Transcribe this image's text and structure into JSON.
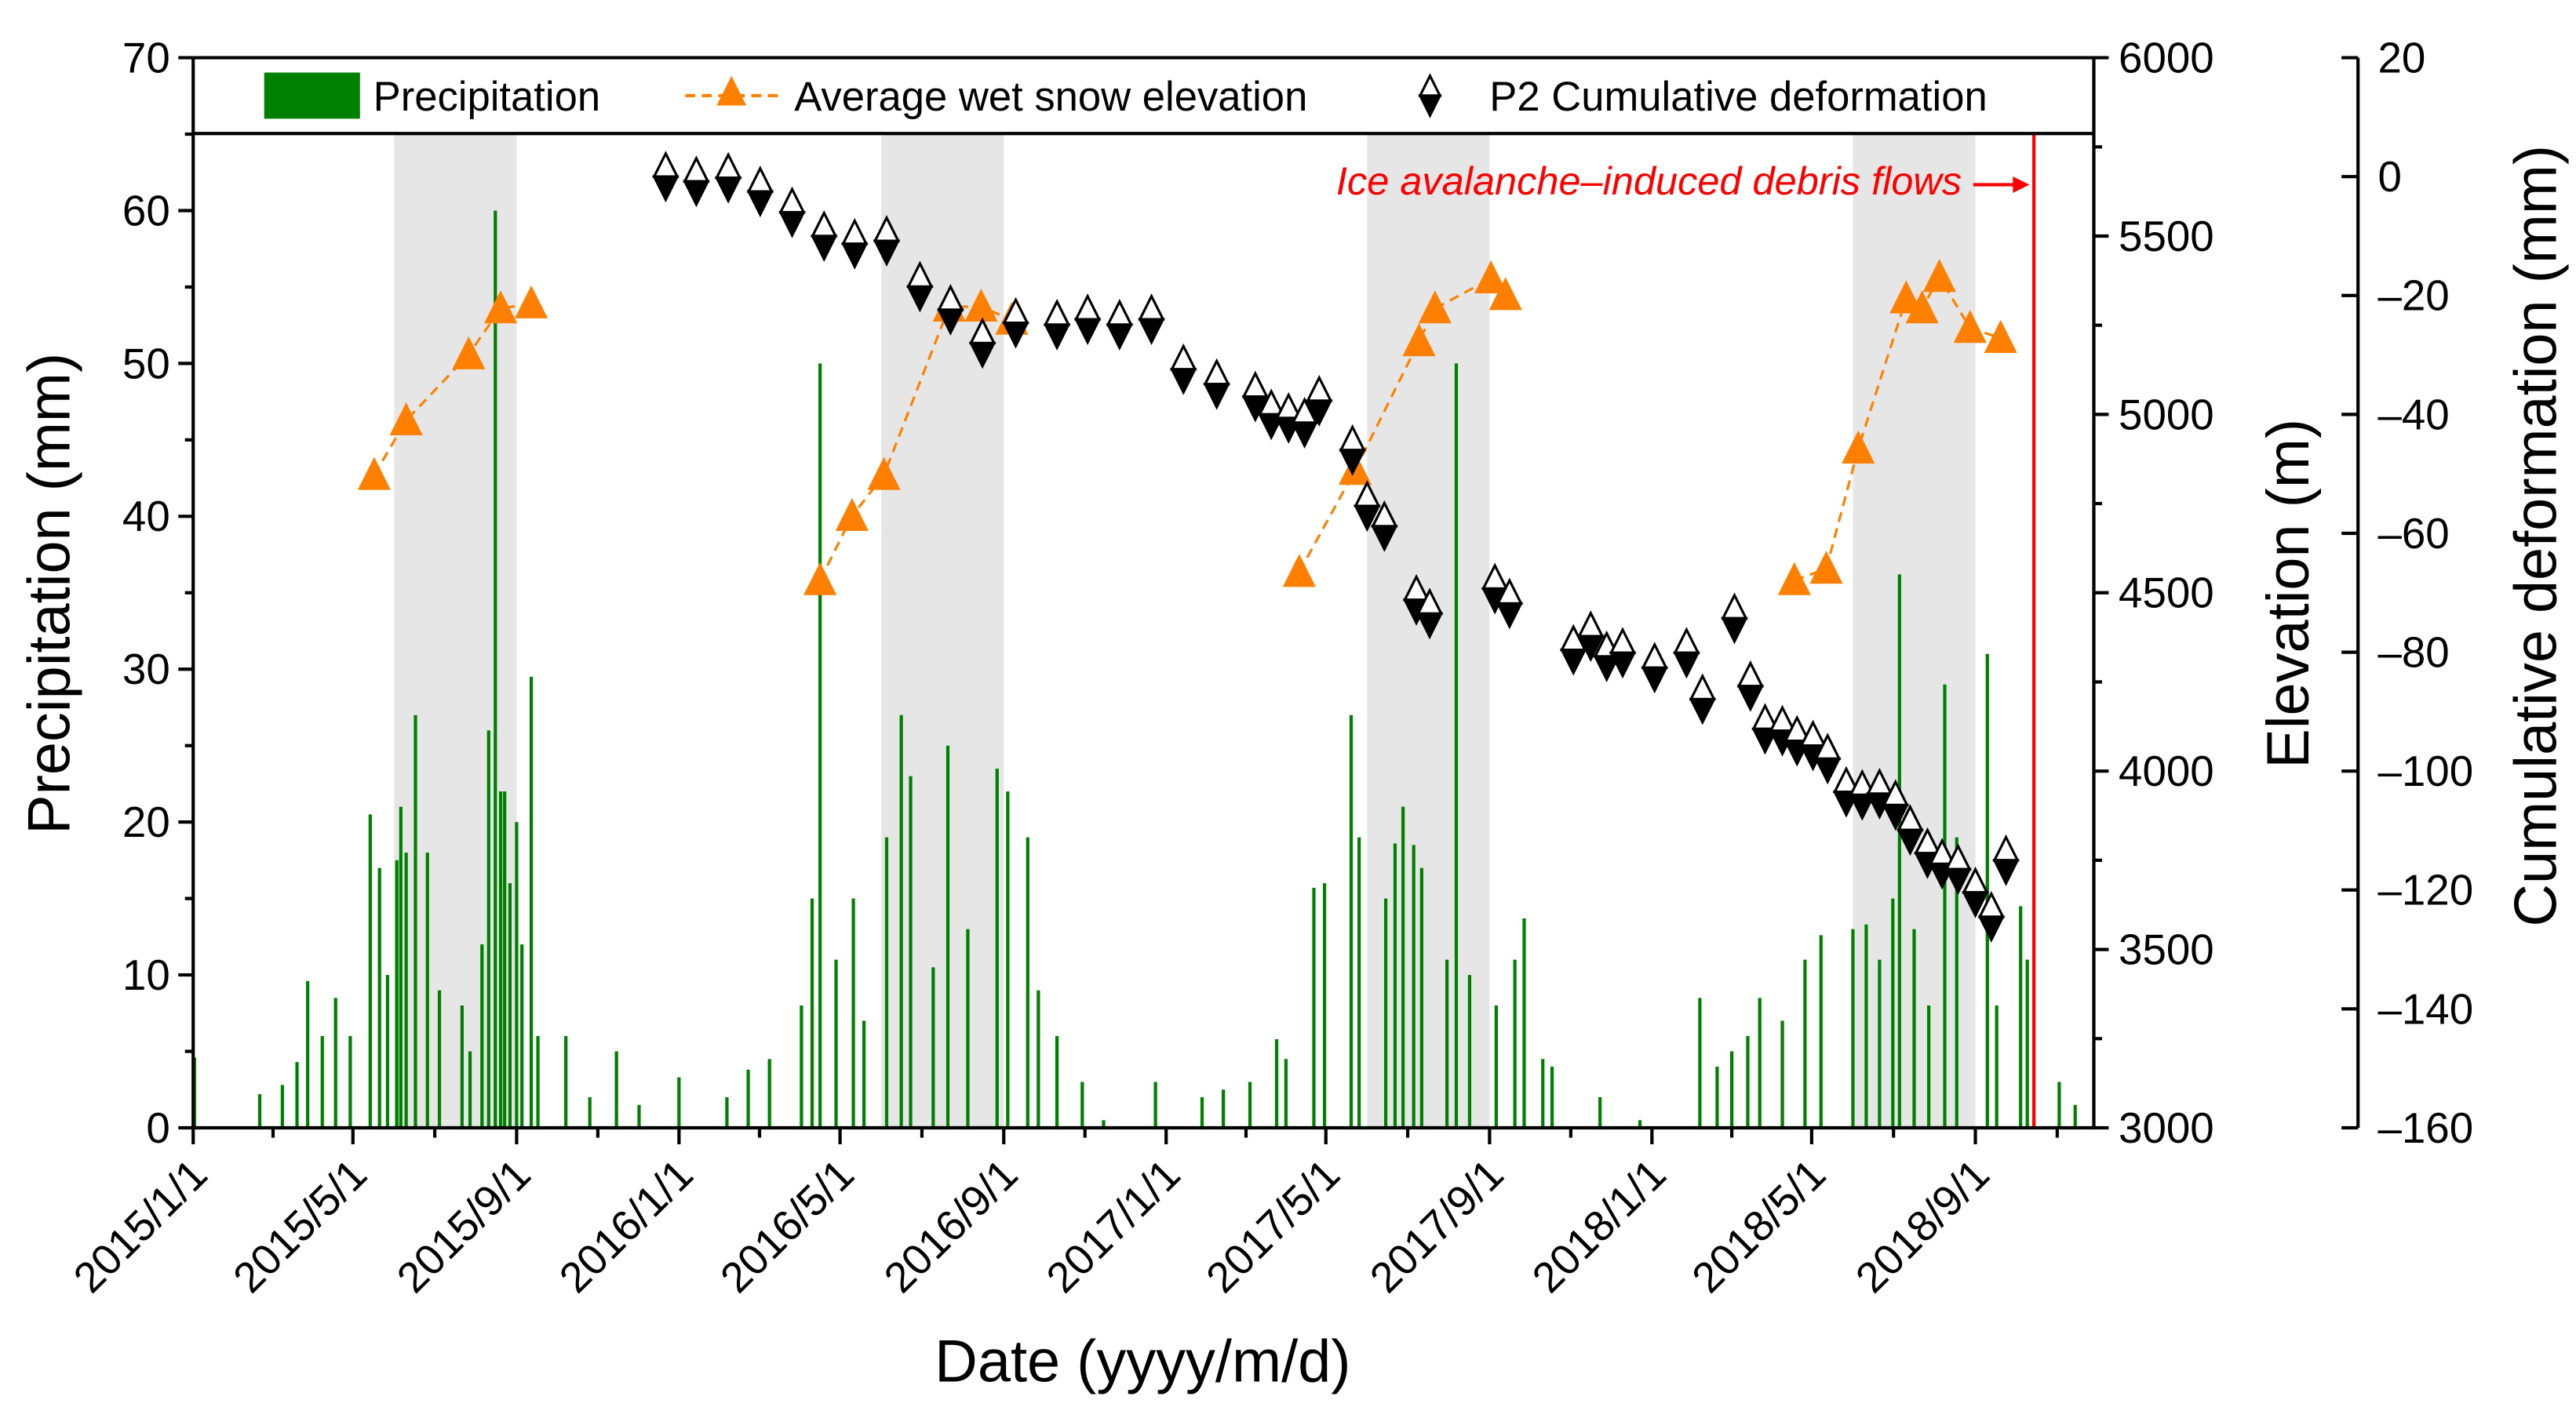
{
  "chart_data": {
    "type": "bar+line+scatter",
    "x_origin": "2015/1/1",
    "x_unit": "days since 2015/1/1",
    "xlabel": "Date (yyyy/m/d)",
    "xlim_days": [
      0,
      1428
    ],
    "x_ticks": [
      {
        "label": "2015/1/1",
        "day": 0
      },
      {
        "label": "2015/5/1",
        "day": 120
      },
      {
        "label": "2015/9/1",
        "day": 243
      },
      {
        "label": "2016/1/1",
        "day": 365
      },
      {
        "label": "2016/5/1",
        "day": 486
      },
      {
        "label": "2016/9/1",
        "day": 609
      },
      {
        "label": "2017/1/1",
        "day": 731
      },
      {
        "label": "2017/5/1",
        "day": 851
      },
      {
        "label": "2017/9/1",
        "day": 974
      },
      {
        "label": "2018/1/1",
        "day": 1096
      },
      {
        "label": "2018/5/1",
        "day": 1216
      },
      {
        "label": "2018/9/1",
        "day": 1339
      }
    ],
    "axes": {
      "left": {
        "label": "Precipitation (mm)",
        "ylim": [
          0,
          70
        ],
        "ticks": [
          "0",
          "10",
          "20",
          "30",
          "40",
          "50",
          "60",
          "70"
        ]
      },
      "right1": {
        "label": "Elevation (m)",
        "ylim": [
          3000,
          6000
        ],
        "ticks": [
          "3000",
          "3500",
          "4000",
          "4500",
          "5000",
          "5500",
          "6000"
        ]
      },
      "right2": {
        "label": "Cumulative deformation (mm)",
        "ylim": [
          -160,
          20
        ],
        "ticks": [
          "20",
          "0",
          "-20",
          "-40",
          "-60",
          "-80",
          "-100",
          "-120",
          "-140",
          "-160"
        ]
      }
    },
    "legend": {
      "placement": "top",
      "entries": [
        "Precipitation",
        "Average wet snow elevation",
        "P2 Cumulative deformation"
      ]
    },
    "colors": {
      "precip": "#008000",
      "snow": "#ff8000",
      "deform": "#000000",
      "event": "#ff0000",
      "shade": "#e6e6e6"
    },
    "shaded_periods_days": [
      [
        151,
        243
      ],
      [
        517,
        609
      ],
      [
        882,
        974
      ],
      [
        1247,
        1339
      ]
    ],
    "event": {
      "label": "Ice avalanche–induced debris flows",
      "day": 1383
    },
    "precipitation": [
      [
        1,
        4.6
      ],
      [
        50,
        2.2
      ],
      [
        67,
        2.8
      ],
      [
        78,
        4.3
      ],
      [
        86,
        9.6
      ],
      [
        97,
        6
      ],
      [
        107,
        8.5
      ],
      [
        118,
        6
      ],
      [
        133,
        20.5
      ],
      [
        140,
        17
      ],
      [
        146,
        10
      ],
      [
        153,
        17.5
      ],
      [
        156,
        21
      ],
      [
        160,
        18
      ],
      [
        167,
        27
      ],
      [
        176,
        18
      ],
      [
        185,
        9
      ],
      [
        202,
        8
      ],
      [
        208,
        5
      ],
      [
        217,
        12
      ],
      [
        222,
        26
      ],
      [
        227,
        60
      ],
      [
        231,
        22
      ],
      [
        234,
        22
      ],
      [
        238,
        16
      ],
      [
        243,
        20
      ],
      [
        247,
        12
      ],
      [
        254,
        29.5
      ],
      [
        259,
        6
      ],
      [
        280,
        6
      ],
      [
        298,
        2
      ],
      [
        318,
        5
      ],
      [
        335,
        1.5
      ],
      [
        365,
        3.3
      ],
      [
        401,
        2
      ],
      [
        417,
        3.8
      ],
      [
        433,
        4.5
      ],
      [
        457,
        8
      ],
      [
        465,
        15
      ],
      [
        471,
        50
      ],
      [
        483,
        11
      ],
      [
        496,
        15
      ],
      [
        504,
        7
      ],
      [
        521,
        19
      ],
      [
        532,
        27
      ],
      [
        539,
        23
      ],
      [
        556,
        10.5
      ],
      [
        567,
        25
      ],
      [
        582,
        13
      ],
      [
        604,
        23.5
      ],
      [
        612,
        22
      ],
      [
        627,
        19
      ],
      [
        635,
        9
      ],
      [
        649,
        6
      ],
      [
        668,
        3
      ],
      [
        684,
        0.5
      ],
      [
        723,
        3
      ],
      [
        758,
        2
      ],
      [
        774,
        2.5
      ],
      [
        794,
        3
      ],
      [
        814,
        5.8
      ],
      [
        821,
        4.5
      ],
      [
        842,
        15.7
      ],
      [
        850,
        16
      ],
      [
        870,
        27
      ],
      [
        876,
        19
      ],
      [
        896,
        15
      ],
      [
        903,
        18.6
      ],
      [
        909,
        21
      ],
      [
        917,
        18.5
      ],
      [
        923,
        17
      ],
      [
        942,
        11
      ],
      [
        949,
        50
      ],
      [
        959,
        10
      ],
      [
        979,
        8
      ],
      [
        993,
        11
      ],
      [
        1000,
        13.7
      ],
      [
        1014,
        4.5
      ],
      [
        1021,
        4
      ],
      [
        1057,
        2
      ],
      [
        1087,
        0.5
      ],
      [
        1132,
        8.5
      ],
      [
        1145,
        4
      ],
      [
        1156,
        5
      ],
      [
        1168,
        6
      ],
      [
        1177,
        8.5
      ],
      [
        1194,
        7
      ],
      [
        1211,
        11
      ],
      [
        1223,
        12.6
      ],
      [
        1247,
        13
      ],
      [
        1257,
        13.3
      ],
      [
        1267,
        11
      ],
      [
        1277,
        15
      ],
      [
        1282,
        36.2
      ],
      [
        1293,
        13
      ],
      [
        1304,
        8
      ],
      [
        1316,
        29
      ],
      [
        1325,
        19
      ],
      [
        1348,
        31
      ],
      [
        1355,
        8
      ],
      [
        1373,
        14.5
      ],
      [
        1378,
        11
      ],
      [
        1402,
        3
      ],
      [
        1414,
        1.5
      ]
    ],
    "wet_snow_elevation": [
      [
        [
          136,
          4830
        ],
        [
          160,
          4983
        ],
        [
          207,
          5168
        ],
        [
          231,
          5297
        ],
        [
          254,
          5311
        ]
      ],
      [
        [
          471,
          4535
        ],
        [
          495,
          4715
        ],
        [
          519,
          4830
        ],
        [
          568,
          5302
        ],
        [
          592,
          5302
        ],
        [
          615,
          5265
        ]
      ],
      [
        [
          831,
          4558
        ],
        [
          873,
          4844
        ],
        [
          921,
          5205
        ],
        [
          933,
          5297
        ],
        [
          975,
          5381
        ],
        [
          986,
          5334
        ]
      ],
      [
        [
          1203,
          4535
        ],
        [
          1227,
          4567
        ],
        [
          1251,
          4904
        ],
        [
          1287,
          5325
        ],
        [
          1299,
          5297
        ],
        [
          1312,
          5385
        ],
        [
          1335,
          5242
        ],
        [
          1358,
          5214
        ]
      ]
    ],
    "p2_cumulative_deformation": [
      [
        355,
        0
      ],
      [
        378,
        -0.8
      ],
      [
        402,
        -0.2
      ],
      [
        426,
        -2.5
      ],
      [
        450,
        -6
      ],
      [
        474,
        -10
      ],
      [
        497,
        -11.3
      ],
      [
        521,
        -10.8
      ],
      [
        546,
        -18.5
      ],
      [
        569,
        -22.4
      ],
      [
        593,
        -28
      ],
      [
        618,
        -24.6
      ],
      [
        649,
        -24.9
      ],
      [
        672,
        -24
      ],
      [
        696,
        -24.9
      ],
      [
        720,
        -24
      ],
      [
        744,
        -32.4
      ],
      [
        769,
        -34.9
      ],
      [
        798,
        -37
      ],
      [
        810,
        -40
      ],
      [
        823,
        -40.6
      ],
      [
        835,
        -41.4
      ],
      [
        846,
        -37.7
      ],
      [
        871,
        -46
      ],
      [
        882,
        -55.4
      ],
      [
        895,
        -58.8
      ],
      [
        919,
        -71.2
      ],
      [
        929,
        -73.5
      ],
      [
        978,
        -69.3
      ],
      [
        989,
        -71.8
      ],
      [
        1037,
        -79.6
      ],
      [
        1050,
        -77.3
      ],
      [
        1062,
        -80.7
      ],
      [
        1074,
        -80.1
      ],
      [
        1098,
        -82.6
      ],
      [
        1122,
        -80.1
      ],
      [
        1134,
        -87.9
      ],
      [
        1158,
        -74.3
      ],
      [
        1170,
        -85.7
      ],
      [
        1181,
        -92.9
      ],
      [
        1194,
        -93.2
      ],
      [
        1205,
        -94.9
      ],
      [
        1217,
        -95.7
      ],
      [
        1228,
        -97.9
      ],
      [
        1242,
        -103.5
      ],
      [
        1254,
        -104
      ],
      [
        1267,
        -103.8
      ],
      [
        1279,
        -105.7
      ],
      [
        1290,
        -109.9
      ],
      [
        1303,
        -113.8
      ],
      [
        1314,
        -115.6
      ],
      [
        1326,
        -116.5
      ],
      [
        1339,
        -120.4
      ],
      [
        1351,
        -124.5
      ],
      [
        1362,
        -115
      ]
    ]
  }
}
